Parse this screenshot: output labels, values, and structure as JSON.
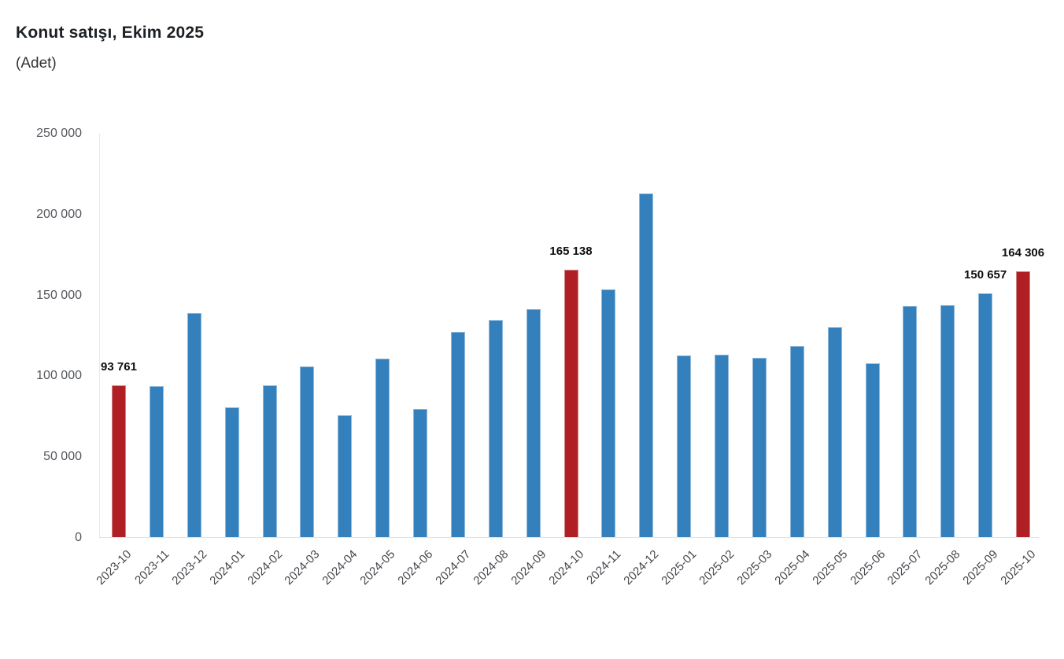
{
  "chart_data": {
    "type": "bar",
    "title": "Konut satışı, Ekim 2025",
    "subtitle": "(Adet)",
    "categories": [
      "2023-10",
      "2023-11",
      "2023-12",
      "2024-01",
      "2024-02",
      "2024-03",
      "2024-04",
      "2024-05",
      "2024-06",
      "2024-07",
      "2024-08",
      "2024-09",
      "2024-10",
      "2024-11",
      "2024-12",
      "2025-01",
      "2025-02",
      "2025-03",
      "2025-04",
      "2025-05",
      "2025-06",
      "2025-07",
      "2025-08",
      "2025-09",
      "2025-10"
    ],
    "values": [
      93761,
      93514,
      138577,
      80308,
      93902,
      105476,
      75569,
      110588,
      79313,
      127088,
      134155,
      140919,
      165138,
      153014,
      212637,
      112173,
      112818,
      110795,
      118359,
      130025,
      107723,
      142858,
      143319,
      150657,
      164306
    ],
    "highlight_indices": [
      0,
      12,
      24
    ],
    "colors": {
      "bar": "#3380bd",
      "highlight": "#b01f24"
    },
    "annotations": [
      {
        "index": 0,
        "label": "93 761"
      },
      {
        "index": 12,
        "label": "165 138"
      },
      {
        "index": 23,
        "label": "150 657"
      },
      {
        "index": 24,
        "label": "164 306"
      }
    ],
    "ylim": [
      0,
      250000
    ],
    "ytick_step": 50000,
    "yticks": [
      {
        "value": 250000,
        "label": "250 000"
      },
      {
        "value": 200000,
        "label": "200 000"
      },
      {
        "value": 150000,
        "label": "150 000"
      },
      {
        "value": 100000,
        "label": "100 000"
      },
      {
        "value": 50000,
        "label": "50 000"
      },
      {
        "value": 0,
        "label": "0"
      }
    ],
    "grid": false,
    "legend": false,
    "x_tick_rotation": -45
  }
}
